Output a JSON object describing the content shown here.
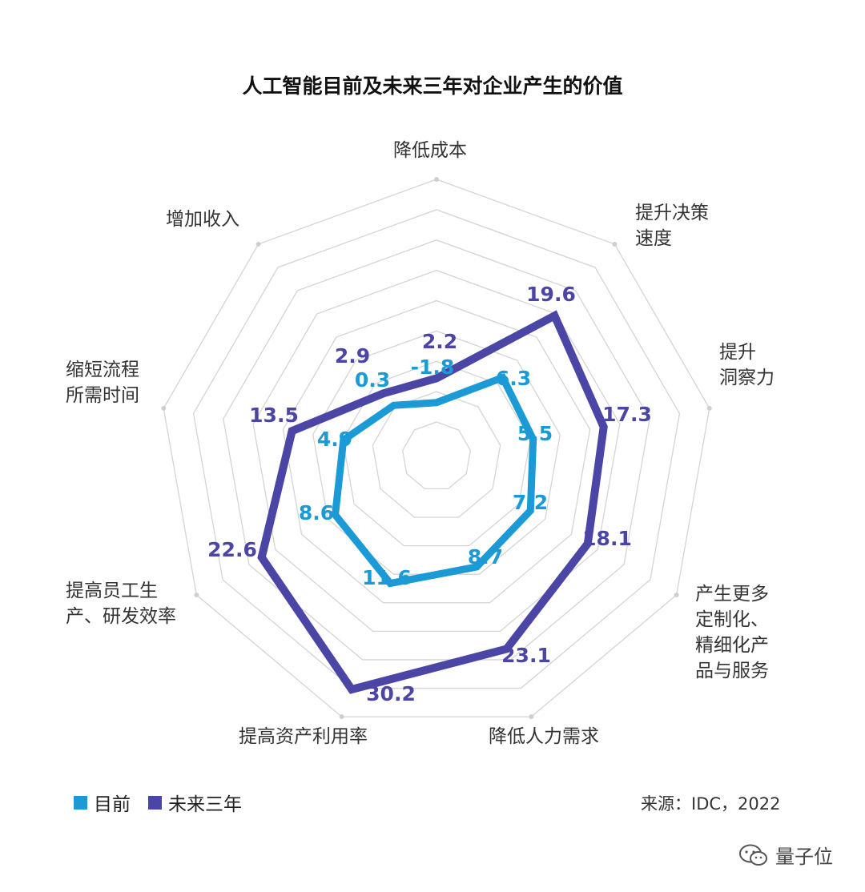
{
  "chart_data": {
    "type": "radar",
    "title": "人工智能目前及未来三年对企业产生的价值",
    "axes": [
      {
        "label": "降低成本"
      },
      {
        "label": "提升决策\n速度"
      },
      {
        "label": "提升\n洞察力"
      },
      {
        "label": "产生更多\n定制化、\n精细化产\n品与服务"
      },
      {
        "label": "降低人力需求"
      },
      {
        "label": "提高资产利用率"
      },
      {
        "label": "提高员工生\n产、研发效率"
      },
      {
        "label": "缩短流程\n所需时间"
      },
      {
        "label": "增加收入"
      }
    ],
    "series": [
      {
        "name": "目前",
        "color": "#1b9ad6",
        "values": [
          -1.8,
          6.3,
          5.5,
          7.2,
          8.7,
          11.6,
          8.6,
          4.9,
          0.3
        ],
        "value_labels": [
          "-1.8",
          "6.3",
          "5.5",
          "7.2",
          "8.7",
          "11.6",
          "8.6",
          "4.9",
          "0.3"
        ]
      },
      {
        "name": "未来三年",
        "color": "#4b46a6",
        "values": [
          2.2,
          19.6,
          17.3,
          18.1,
          23.1,
          30.2,
          22.6,
          13.5,
          2.9
        ],
        "value_labels": [
          "2.2",
          "19.6",
          "17.3",
          "18.1",
          "23.1",
          "30.2",
          "22.6",
          "13.5",
          "2.9"
        ]
      }
    ],
    "legend_position": "bottom-left",
    "grid": true
  },
  "legend": {
    "current": "目前",
    "future": "未来三年"
  },
  "source": "来源：IDC，2022",
  "watermark": "量子位"
}
